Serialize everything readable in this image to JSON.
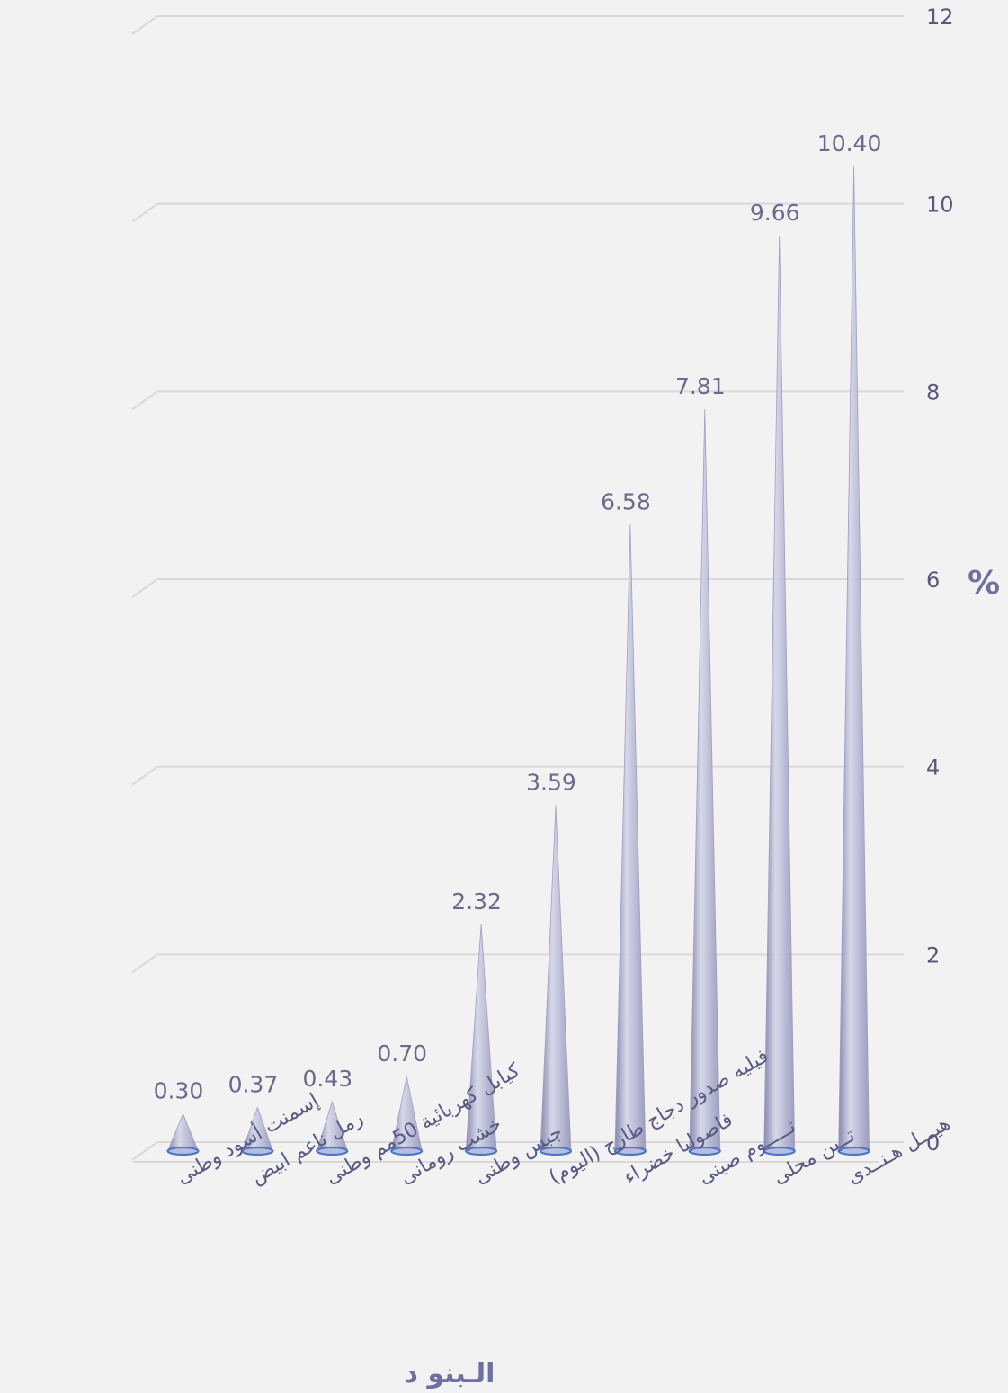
{
  "chart_data": {
    "type": "bar",
    "mark": "cone-3d",
    "categories": [
      "إسمنت أسود وطنى",
      "رمل ناعم ابيض",
      "كيابل كهربائية 50مم وطنى",
      "خشب رومانى",
      "جبس وطنى",
      "فيليه صدور دجاج طازج (اليوم)",
      "فاصوليا خضراء",
      "ثـــــوم صينى",
      "تــين محلى",
      "هيـــل هـنــدى"
    ],
    "values": [
      0.3,
      0.37,
      0.43,
      0.7,
      2.32,
      3.59,
      6.58,
      7.81,
      9.66,
      10.4
    ],
    "value_labels": [
      "0.30",
      "0.37",
      "0.43",
      "0.70",
      "2.32",
      "3.59",
      "6.58",
      "7.81",
      "9.66",
      "10.40"
    ],
    "xlabel": "الـبنو د",
    "ylabel": "%",
    "ylim": [
      0,
      12
    ],
    "yticks": [
      "0",
      "2",
      "4",
      "6",
      "8",
      "10",
      "12"
    ],
    "y_axis_side": "right",
    "grid": true,
    "colors": {
      "background": "#f2f2f2",
      "gridline": "#d9d9d9",
      "cone_fill": "#a7a7c7",
      "cone_base": "#4a78c8",
      "text": "#59597a"
    }
  }
}
